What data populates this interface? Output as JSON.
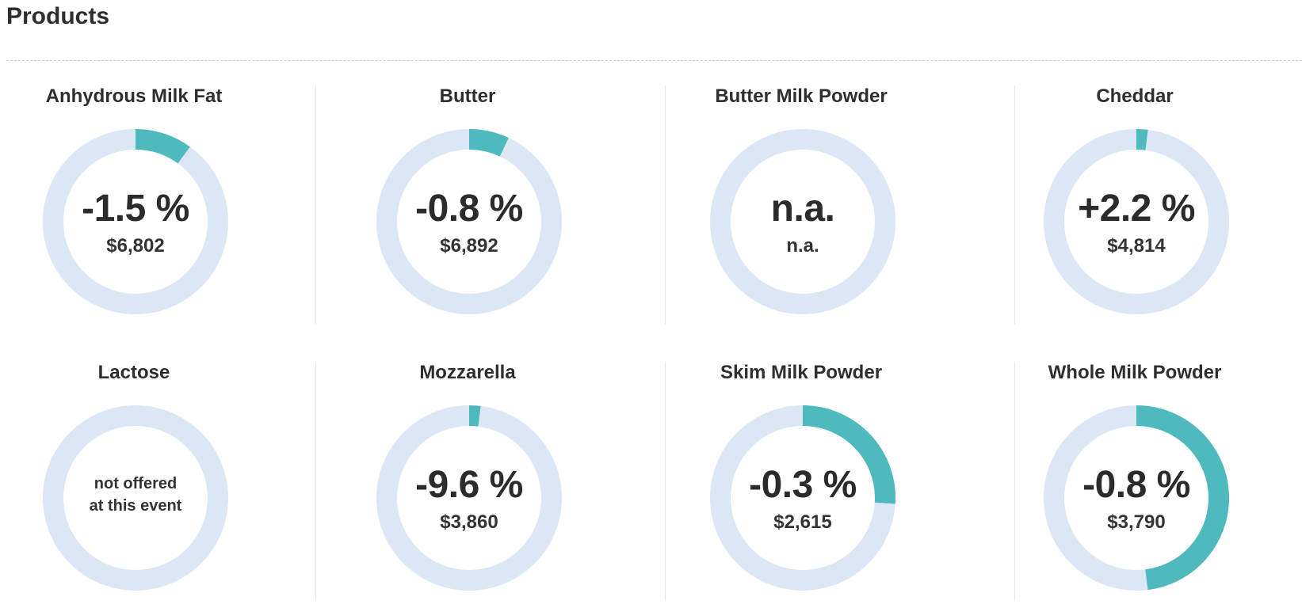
{
  "page": {
    "title": "Products"
  },
  "colors": {
    "track": "#dce7f5",
    "fill": "#4fbabd",
    "text": "#2b2b2b"
  },
  "chart_data": {
    "type": "pie",
    "title": "Products",
    "products": [
      {
        "name": "Anhydrous Milk Fat",
        "change": "-1.5 %",
        "price": "$6,802",
        "fill_percent": 10
      },
      {
        "name": "Butter",
        "change": "-0.8 %",
        "price": "$6,892",
        "fill_percent": 7
      },
      {
        "name": "Butter Milk Powder",
        "change": "n.a.",
        "price": "n.a.",
        "fill_percent": 0
      },
      {
        "name": "Cheddar",
        "change": "+2.2 %",
        "price": "$4,814",
        "fill_percent": 2
      },
      {
        "name": "Lactose",
        "note": "not offered\nat this event",
        "fill_percent": 0
      },
      {
        "name": "Mozzarella",
        "change": "-9.6 %",
        "price": "$3,860",
        "fill_percent": 2
      },
      {
        "name": "Skim Milk Powder",
        "change": "-0.3 %",
        "price": "$2,615",
        "fill_percent": 26
      },
      {
        "name": "Whole Milk Powder",
        "change": "-0.8 %",
        "price": "$3,790",
        "fill_percent": 48
      }
    ]
  }
}
